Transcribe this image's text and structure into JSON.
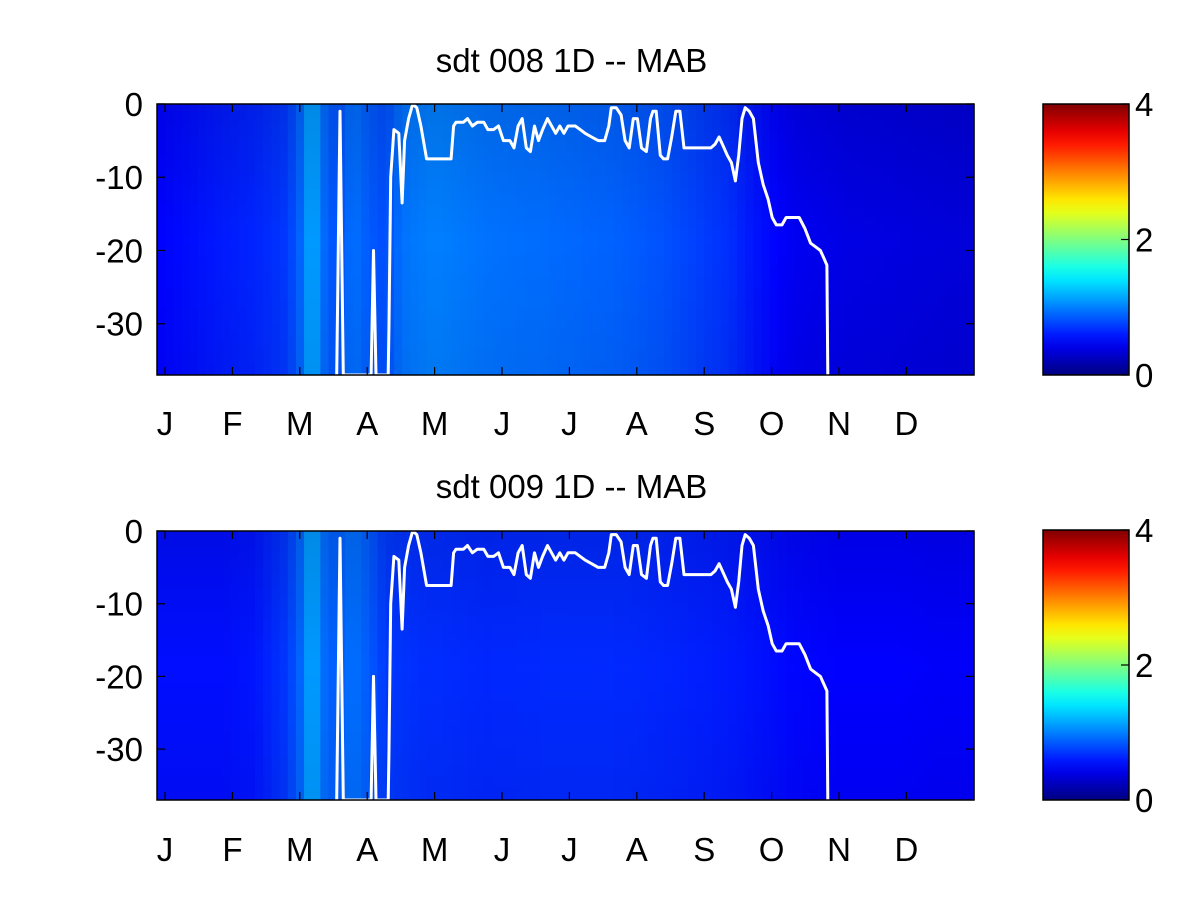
{
  "chart_data": [
    {
      "type": "heatmap",
      "title": "sdt  008 1D   -- MAB",
      "x_tick_labels": [
        "J",
        "F",
        "M",
        "A",
        "M",
        "J",
        "J",
        "A",
        "S",
        "O",
        "N",
        "D"
      ],
      "y_ticks": [
        0,
        -10,
        -20,
        -30
      ],
      "ylim": [
        -37,
        0
      ],
      "colorbar": {
        "ticks": [
          0,
          2,
          4
        ],
        "range": [
          0,
          4
        ],
        "colormap": "jet"
      },
      "heat_profile": [
        [
          0.0,
          0.5
        ],
        [
          0.04,
          0.55
        ],
        [
          0.08,
          0.6
        ],
        [
          0.12,
          0.64
        ],
        [
          0.16,
          0.72
        ],
        [
          0.18,
          0.95
        ],
        [
          0.19,
          1.25
        ],
        [
          0.2,
          0.95
        ],
        [
          0.22,
          0.8
        ],
        [
          0.24,
          0.95
        ],
        [
          0.26,
          0.85
        ],
        [
          0.28,
          0.8
        ],
        [
          0.3,
          0.95
        ],
        [
          0.34,
          1.0
        ],
        [
          0.4,
          0.95
        ],
        [
          0.48,
          0.92
        ],
        [
          0.56,
          0.88
        ],
        [
          0.62,
          0.82
        ],
        [
          0.66,
          0.75
        ],
        [
          0.7,
          0.68
        ],
        [
          0.74,
          0.55
        ],
        [
          0.78,
          0.45
        ],
        [
          0.84,
          0.4
        ],
        [
          0.9,
          0.38
        ],
        [
          0.96,
          0.36
        ],
        [
          1.0,
          0.35
        ]
      ],
      "line": [
        [
          0.22,
          -37
        ],
        [
          0.224,
          -1
        ],
        [
          0.228,
          -37
        ],
        [
          0.262,
          -37
        ],
        [
          0.265,
          -20
        ],
        [
          0.268,
          -37
        ],
        [
          0.283,
          -37
        ],
        [
          0.284,
          -30
        ],
        [
          0.286,
          -10
        ],
        [
          0.29,
          -3.5
        ],
        [
          0.296,
          -4
        ],
        [
          0.3,
          -13.5
        ],
        [
          0.303,
          -5
        ],
        [
          0.308,
          -2
        ],
        [
          0.313,
          0
        ],
        [
          0.318,
          -0.5
        ],
        [
          0.323,
          -3
        ],
        [
          0.33,
          -7.5
        ],
        [
          0.337,
          -7.5
        ],
        [
          0.345,
          -7.5
        ],
        [
          0.352,
          -7.5
        ],
        [
          0.36,
          -7.5
        ],
        [
          0.363,
          -3
        ],
        [
          0.366,
          -2.5
        ],
        [
          0.375,
          -2.5
        ],
        [
          0.38,
          -2
        ],
        [
          0.386,
          -3
        ],
        [
          0.392,
          -2.5
        ],
        [
          0.4,
          -2.5
        ],
        [
          0.405,
          -3.5
        ],
        [
          0.412,
          -3.5
        ],
        [
          0.418,
          -3
        ],
        [
          0.424,
          -5
        ],
        [
          0.432,
          -5
        ],
        [
          0.437,
          -6
        ],
        [
          0.442,
          -3
        ],
        [
          0.447,
          -2
        ],
        [
          0.452,
          -6
        ],
        [
          0.457,
          -6.5
        ],
        [
          0.462,
          -3
        ],
        [
          0.467,
          -5
        ],
        [
          0.472,
          -3.5
        ],
        [
          0.478,
          -2
        ],
        [
          0.483,
          -3
        ],
        [
          0.488,
          -4
        ],
        [
          0.493,
          -3
        ],
        [
          0.498,
          -4
        ],
        [
          0.503,
          -3
        ],
        [
          0.512,
          -3
        ],
        [
          0.518,
          -3.5
        ],
        [
          0.524,
          -4
        ],
        [
          0.532,
          -4.5
        ],
        [
          0.54,
          -5
        ],
        [
          0.548,
          -5
        ],
        [
          0.553,
          -3
        ],
        [
          0.556,
          -0.5
        ],
        [
          0.562,
          -0.5
        ],
        [
          0.568,
          -1.5
        ],
        [
          0.573,
          -5
        ],
        [
          0.578,
          -6
        ],
        [
          0.583,
          -2
        ],
        [
          0.588,
          -2
        ],
        [
          0.593,
          -6
        ],
        [
          0.599,
          -6.5
        ],
        [
          0.604,
          -2
        ],
        [
          0.607,
          -1
        ],
        [
          0.611,
          -1
        ],
        [
          0.616,
          -7
        ],
        [
          0.62,
          -7.5
        ],
        [
          0.625,
          -7.5
        ],
        [
          0.63,
          -4.5
        ],
        [
          0.635,
          -1
        ],
        [
          0.64,
          -1
        ],
        [
          0.645,
          -6
        ],
        [
          0.65,
          -6
        ],
        [
          0.66,
          -6
        ],
        [
          0.67,
          -6
        ],
        [
          0.678,
          -6
        ],
        [
          0.683,
          -5.5
        ],
        [
          0.688,
          -4.5
        ],
        [
          0.692,
          -5.5
        ],
        [
          0.698,
          -7
        ],
        [
          0.703,
          -8
        ],
        [
          0.708,
          -10.5
        ],
        [
          0.712,
          -7
        ],
        [
          0.716,
          -2
        ],
        [
          0.72,
          -0.5
        ],
        [
          0.725,
          -1
        ],
        [
          0.73,
          -2
        ],
        [
          0.736,
          -8
        ],
        [
          0.742,
          -11
        ],
        [
          0.748,
          -13
        ],
        [
          0.753,
          -15.5
        ],
        [
          0.758,
          -16.5
        ],
        [
          0.765,
          -16.5
        ],
        [
          0.77,
          -15.5
        ],
        [
          0.778,
          -15.5
        ],
        [
          0.786,
          -15.5
        ],
        [
          0.793,
          -17
        ],
        [
          0.8,
          -19
        ],
        [
          0.806,
          -19.5
        ],
        [
          0.812,
          -20
        ],
        [
          0.816,
          -21
        ],
        [
          0.82,
          -22
        ],
        [
          0.821,
          -37
        ]
      ]
    },
    {
      "type": "heatmap",
      "title": "sdt  009 1D   -- MAB",
      "x_tick_labels": [
        "J",
        "F",
        "M",
        "A",
        "M",
        "J",
        "J",
        "A",
        "S",
        "O",
        "N",
        "D"
      ],
      "y_ticks": [
        0,
        -10,
        -20,
        -30
      ],
      "ylim": [
        -37,
        0
      ],
      "colorbar": {
        "ticks": [
          0,
          2,
          4
        ],
        "range": [
          0,
          4
        ],
        "colormap": "jet"
      },
      "heat_profile": [
        [
          0.0,
          0.55
        ],
        [
          0.04,
          0.55
        ],
        [
          0.08,
          0.55
        ],
        [
          0.12,
          0.58
        ],
        [
          0.16,
          0.72
        ],
        [
          0.18,
          0.95
        ],
        [
          0.19,
          1.25
        ],
        [
          0.2,
          0.95
        ],
        [
          0.22,
          0.85
        ],
        [
          0.24,
          0.95
        ],
        [
          0.26,
          0.85
        ],
        [
          0.28,
          0.72
        ],
        [
          0.32,
          0.68
        ],
        [
          0.4,
          0.65
        ],
        [
          0.48,
          0.66
        ],
        [
          0.56,
          0.66
        ],
        [
          0.62,
          0.64
        ],
        [
          0.66,
          0.62
        ],
        [
          0.7,
          0.6
        ],
        [
          0.74,
          0.56
        ],
        [
          0.78,
          0.52
        ],
        [
          0.84,
          0.5
        ],
        [
          0.9,
          0.5
        ],
        [
          0.96,
          0.48
        ],
        [
          1.0,
          0.48
        ]
      ],
      "line": [
        [
          0.22,
          -37
        ],
        [
          0.224,
          -1
        ],
        [
          0.228,
          -37
        ],
        [
          0.262,
          -37
        ],
        [
          0.265,
          -20
        ],
        [
          0.268,
          -37
        ],
        [
          0.283,
          -37
        ],
        [
          0.284,
          -30
        ],
        [
          0.286,
          -10
        ],
        [
          0.29,
          -3.5
        ],
        [
          0.296,
          -4
        ],
        [
          0.3,
          -13.5
        ],
        [
          0.303,
          -5
        ],
        [
          0.308,
          -2
        ],
        [
          0.313,
          0
        ],
        [
          0.318,
          -0.5
        ],
        [
          0.323,
          -3
        ],
        [
          0.33,
          -7.5
        ],
        [
          0.337,
          -7.5
        ],
        [
          0.345,
          -7.5
        ],
        [
          0.352,
          -7.5
        ],
        [
          0.36,
          -7.5
        ],
        [
          0.363,
          -3
        ],
        [
          0.366,
          -2.5
        ],
        [
          0.375,
          -2.5
        ],
        [
          0.38,
          -2
        ],
        [
          0.386,
          -3
        ],
        [
          0.392,
          -2.5
        ],
        [
          0.4,
          -2.5
        ],
        [
          0.405,
          -3.5
        ],
        [
          0.412,
          -3.5
        ],
        [
          0.418,
          -3
        ],
        [
          0.424,
          -5
        ],
        [
          0.432,
          -5
        ],
        [
          0.437,
          -6
        ],
        [
          0.442,
          -3
        ],
        [
          0.447,
          -2
        ],
        [
          0.452,
          -6
        ],
        [
          0.457,
          -6.5
        ],
        [
          0.462,
          -3
        ],
        [
          0.467,
          -5
        ],
        [
          0.472,
          -3.5
        ],
        [
          0.478,
          -2
        ],
        [
          0.483,
          -3
        ],
        [
          0.488,
          -4
        ],
        [
          0.493,
          -3
        ],
        [
          0.498,
          -4
        ],
        [
          0.503,
          -3
        ],
        [
          0.512,
          -3
        ],
        [
          0.518,
          -3.5
        ],
        [
          0.524,
          -4
        ],
        [
          0.532,
          -4.5
        ],
        [
          0.54,
          -5
        ],
        [
          0.548,
          -5
        ],
        [
          0.553,
          -3
        ],
        [
          0.556,
          -0.5
        ],
        [
          0.562,
          -0.5
        ],
        [
          0.568,
          -1.5
        ],
        [
          0.573,
          -5
        ],
        [
          0.578,
          -6
        ],
        [
          0.583,
          -2
        ],
        [
          0.588,
          -2
        ],
        [
          0.593,
          -6
        ],
        [
          0.599,
          -6.5
        ],
        [
          0.604,
          -2
        ],
        [
          0.607,
          -1
        ],
        [
          0.611,
          -1
        ],
        [
          0.616,
          -7
        ],
        [
          0.62,
          -7.5
        ],
        [
          0.625,
          -7.5
        ],
        [
          0.63,
          -4.5
        ],
        [
          0.635,
          -1
        ],
        [
          0.64,
          -1
        ],
        [
          0.645,
          -6
        ],
        [
          0.65,
          -6
        ],
        [
          0.66,
          -6
        ],
        [
          0.67,
          -6
        ],
        [
          0.678,
          -6
        ],
        [
          0.683,
          -5.5
        ],
        [
          0.688,
          -4.5
        ],
        [
          0.692,
          -5.5
        ],
        [
          0.698,
          -7
        ],
        [
          0.703,
          -8
        ],
        [
          0.708,
          -10.5
        ],
        [
          0.712,
          -7
        ],
        [
          0.716,
          -2
        ],
        [
          0.72,
          -0.5
        ],
        [
          0.725,
          -1
        ],
        [
          0.73,
          -2
        ],
        [
          0.736,
          -8
        ],
        [
          0.742,
          -11
        ],
        [
          0.748,
          -13
        ],
        [
          0.753,
          -15.5
        ],
        [
          0.758,
          -16.5
        ],
        [
          0.765,
          -16.5
        ],
        [
          0.77,
          -15.5
        ],
        [
          0.778,
          -15.5
        ],
        [
          0.786,
          -15.5
        ],
        [
          0.793,
          -17
        ],
        [
          0.8,
          -19
        ],
        [
          0.806,
          -19.5
        ],
        [
          0.812,
          -20
        ],
        [
          0.816,
          -21
        ],
        [
          0.82,
          -22
        ],
        [
          0.821,
          -37
        ]
      ]
    }
  ]
}
